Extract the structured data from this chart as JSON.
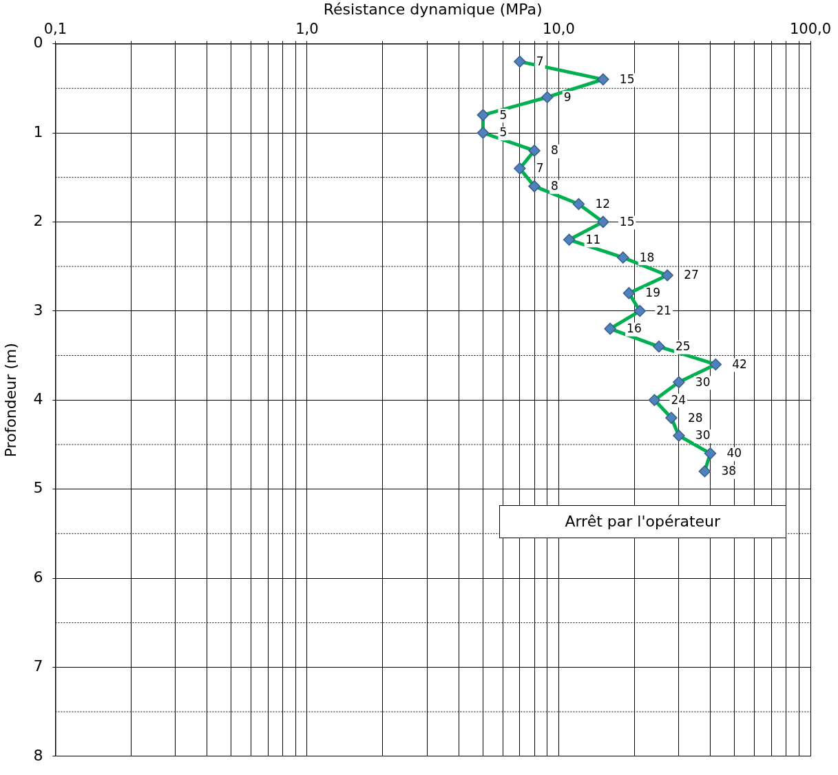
{
  "chart_data": {
    "type": "line",
    "orientation": "horizontal",
    "xlabel": "Résistance dynamique (MPa)",
    "ylabel": "Profondeur (m)",
    "x": [
      0.2,
      0.4,
      0.6,
      0.8,
      1.0,
      1.2,
      1.4,
      1.6,
      1.8,
      2.0,
      2.2,
      2.4,
      2.6,
      2.8,
      3.0,
      3.2,
      3.4,
      3.6,
      3.8,
      4.0,
      4.2,
      4.4,
      4.6,
      4.8
    ],
    "series": [
      {
        "color": "#00b050",
        "colors": [
          "#4f81bd",
          "#4f81bd",
          "#4f81bd",
          "#4f81bd",
          "#4f81bd",
          "#4f81bd",
          "#4f81bd",
          "#4f81bd",
          "#4f81bd",
          "#4f81bd",
          "#4f81bd",
          "#4f81bd",
          "#4f81bd",
          "#4f81bd",
          "#4f81bd",
          "#4f81bd",
          "#4f81bd",
          "#4f81bd",
          "#4f81bd",
          "#4f81bd",
          "#4f81bd",
          "#4f81bd",
          "#4f81bd",
          "#4f81bd"
        ],
        "values": [
          7,
          15,
          9,
          5,
          5,
          8,
          7,
          8,
          12,
          15,
          11,
          18,
          27,
          19,
          21,
          16,
          25,
          42,
          30,
          24,
          28,
          30,
          40,
          38
        ]
      }
    ],
    "log": "x",
    "xlim": [
      0.1,
      100
    ],
    "xticks": [
      {
        "value": 0.1,
        "label": "0,1"
      },
      {
        "value": 0.2,
        "label": null
      },
      {
        "value": 0.3,
        "label": null
      },
      {
        "value": 0.4,
        "label": null
      },
      {
        "value": 0.5,
        "label": null
      },
      {
        "value": 0.6,
        "label": null
      },
      {
        "value": 0.7,
        "label": null
      },
      {
        "value": 0.8,
        "label": null
      },
      {
        "value": 0.9,
        "label": null
      },
      {
        "value": 1,
        "label": "1,0"
      },
      {
        "value": 2,
        "label": null
      },
      {
        "value": 3,
        "label": null
      },
      {
        "value": 4,
        "label": null
      },
      {
        "value": 5,
        "label": null
      },
      {
        "value": 6,
        "label": null
      },
      {
        "value": 7,
        "label": null
      },
      {
        "value": 8,
        "label": null
      },
      {
        "value": 9,
        "label": null
      },
      {
        "value": 10,
        "label": "10,0"
      },
      {
        "value": 20,
        "label": null
      },
      {
        "value": 30,
        "label": null
      },
      {
        "value": 40,
        "label": null
      },
      {
        "value": 50,
        "label": null
      },
      {
        "value": 60,
        "label": null
      },
      {
        "value": 70,
        "label": null
      },
      {
        "value": 80,
        "label": null
      },
      {
        "value": 90,
        "label": null
      },
      {
        "value": 100,
        "label": "100,0"
      }
    ],
    "ylim": [
      8,
      0
    ],
    "yticks": [
      0,
      {
        "value": 0.5,
        "label": null
      },
      1,
      {
        "value": 1.5,
        "label": null
      },
      2,
      {
        "value": 2.5,
        "label": null
      },
      3,
      {
        "value": 3.5,
        "label": null
      },
      4,
      {
        "value": 4.5,
        "label": null
      },
      5,
      {
        "value": 5.5,
        "label": null
      },
      6,
      {
        "value": 6.5,
        "label": null
      },
      7,
      {
        "value": 7.5,
        "label": null
      },
      8
    ],
    "grid": true,
    "legend": false,
    "marker": "diamond",
    "line_style": "solid",
    "data_labels": true,
    "annotations": [
      "Arrêt par l'opérateur"
    ]
  }
}
